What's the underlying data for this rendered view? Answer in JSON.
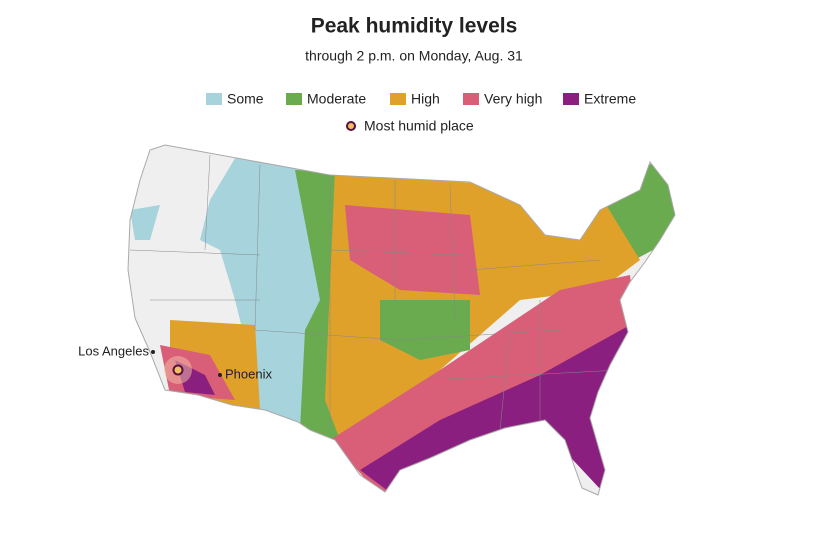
{
  "header": {
    "title": "Peak humidity levels",
    "subtitle": "through 2 p.m. on Monday, Aug. 31"
  },
  "legend": {
    "items": [
      {
        "label": "Some",
        "color": "#a6d3dc"
      },
      {
        "label": "Moderate",
        "color": "#6aab4f"
      },
      {
        "label": "High",
        "color": "#e0a12b"
      },
      {
        "label": "Very high",
        "color": "#d95f79"
      },
      {
        "label": "Extreme",
        "color": "#8b1f7f"
      }
    ],
    "marker": "Most humid place"
  },
  "map": {
    "cities": [
      {
        "label": "Los Angeles"
      },
      {
        "label": "Phoenix"
      }
    ]
  }
}
